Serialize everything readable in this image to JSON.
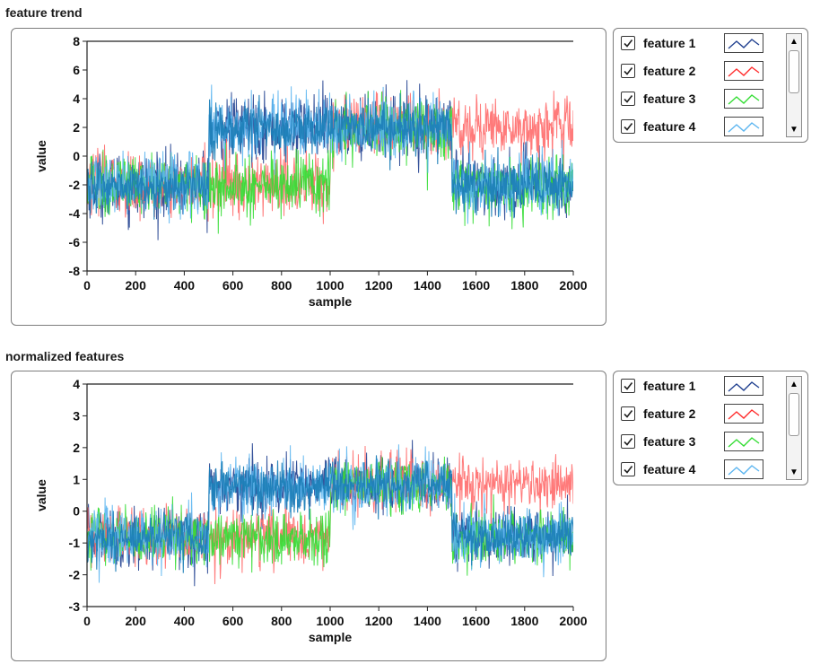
{
  "chart_data": [
    {
      "type": "line",
      "title": "feature trend",
      "xlabel": "sample",
      "ylabel": "value",
      "xlim": [
        0,
        2000
      ],
      "ylim": [
        -8,
        8
      ],
      "x_ticks": [
        "0",
        "200",
        "400",
        "600",
        "800",
        "1000",
        "1200",
        "1400",
        "1600",
        "1800",
        "2000"
      ],
      "y_ticks": [
        "8",
        "6",
        "4",
        "2",
        "0",
        "-2",
        "-4",
        "-6",
        "-8"
      ],
      "grid": false,
      "legend_position": "right",
      "series": [
        {
          "name": "feature 1",
          "color": "#1f3f8f",
          "segments": [
            {
              "x_start": 0,
              "x_end": 500,
              "mean": -2,
              "spread": 2
            },
            {
              "x_start": 500,
              "x_end": 1500,
              "mean": 2,
              "spread": 2
            },
            {
              "x_start": 1500,
              "x_end": 2000,
              "mean": -2,
              "spread": 2
            }
          ]
        },
        {
          "name": "feature 2",
          "color": "#ff6b6b",
          "segments": [
            {
              "x_start": 0,
              "x_end": 500,
              "mean": -2,
              "spread": 2
            },
            {
              "x_start": 500,
              "x_end": 1000,
              "mean": -2,
              "spread": 2
            },
            {
              "x_start": 1000,
              "x_end": 1500,
              "mean": 2,
              "spread": 2
            },
            {
              "x_start": 1500,
              "x_end": 2000,
              "mean": 2,
              "spread": 2
            }
          ]
        },
        {
          "name": "feature 3",
          "color": "#33dd33",
          "segments": [
            {
              "x_start": 0,
              "x_end": 500,
              "mean": -2,
              "spread": 2
            },
            {
              "x_start": 500,
              "x_end": 1000,
              "mean": -2,
              "spread": 2
            },
            {
              "x_start": 1000,
              "x_end": 1500,
              "mean": 2,
              "spread": 2
            },
            {
              "x_start": 1500,
              "x_end": 2000,
              "mean": -2,
              "spread": 2
            }
          ]
        },
        {
          "name": "feature 4",
          "color": "#5bb5f0",
          "segments": [
            {
              "x_start": 0,
              "x_end": 500,
              "mean": -2,
              "spread": 2
            },
            {
              "x_start": 500,
              "x_end": 1500,
              "mean": 2,
              "spread": 2
            },
            {
              "x_start": 1500,
              "x_end": 2000,
              "mean": -2,
              "spread": 2
            }
          ]
        },
        {
          "name": "",
          "color": "#1e7fb8",
          "segments": [
            {
              "x_start": 0,
              "x_end": 500,
              "mean": -2,
              "spread": 1.6
            },
            {
              "x_start": 500,
              "x_end": 1500,
              "mean": 2,
              "spread": 1.6
            },
            {
              "x_start": 1500,
              "x_end": 2000,
              "mean": -2,
              "spread": 1.6
            }
          ]
        }
      ]
    },
    {
      "type": "line",
      "title": "normalized features",
      "xlabel": "sample",
      "ylabel": "value",
      "xlim": [
        0,
        2000
      ],
      "ylim": [
        -3,
        4
      ],
      "x_ticks": [
        "0",
        "200",
        "400",
        "600",
        "800",
        "1000",
        "1200",
        "1400",
        "1600",
        "1800",
        "2000"
      ],
      "y_ticks": [
        "4",
        "3",
        "2",
        "1",
        "0",
        "-1",
        "-2",
        "-3"
      ],
      "grid": false,
      "legend_position": "right",
      "series": [
        {
          "name": "feature 1",
          "color": "#1f3f8f",
          "segments": [
            {
              "x_start": 0,
              "x_end": 500,
              "mean": -0.8,
              "spread": 0.8
            },
            {
              "x_start": 500,
              "x_end": 1500,
              "mean": 0.8,
              "spread": 0.8
            },
            {
              "x_start": 1500,
              "x_end": 2000,
              "mean": -0.8,
              "spread": 0.8
            }
          ]
        },
        {
          "name": "feature 2",
          "color": "#ff6b6b",
          "segments": [
            {
              "x_start": 0,
              "x_end": 500,
              "mean": -0.8,
              "spread": 0.8
            },
            {
              "x_start": 500,
              "x_end": 1000,
              "mean": -0.8,
              "spread": 0.8
            },
            {
              "x_start": 1000,
              "x_end": 1500,
              "mean": 0.8,
              "spread": 0.8
            },
            {
              "x_start": 1500,
              "x_end": 2000,
              "mean": 0.8,
              "spread": 0.8
            }
          ]
        },
        {
          "name": "feature 3",
          "color": "#33dd33",
          "segments": [
            {
              "x_start": 0,
              "x_end": 500,
              "mean": -0.8,
              "spread": 0.8
            },
            {
              "x_start": 500,
              "x_end": 1000,
              "mean": -0.8,
              "spread": 0.8
            },
            {
              "x_start": 1000,
              "x_end": 1500,
              "mean": 0.8,
              "spread": 0.8
            },
            {
              "x_start": 1500,
              "x_end": 2000,
              "mean": -0.8,
              "spread": 0.8
            }
          ]
        },
        {
          "name": "feature 4",
          "color": "#5bb5f0",
          "segments": [
            {
              "x_start": 0,
              "x_end": 500,
              "mean": -0.8,
              "spread": 0.8
            },
            {
              "x_start": 500,
              "x_end": 1500,
              "mean": 0.8,
              "spread": 0.8
            },
            {
              "x_start": 1500,
              "x_end": 2000,
              "mean": -0.8,
              "spread": 0.8
            }
          ]
        },
        {
          "name": "",
          "color": "#1e7fb8",
          "segments": [
            {
              "x_start": 0,
              "x_end": 500,
              "mean": -0.8,
              "spread": 0.65
            },
            {
              "x_start": 500,
              "x_end": 1500,
              "mean": 0.8,
              "spread": 0.65
            },
            {
              "x_start": 1500,
              "x_end": 2000,
              "mean": -0.8,
              "spread": 0.65
            }
          ]
        }
      ]
    }
  ],
  "legends": [
    {
      "items": [
        "feature 1",
        "feature 2",
        "feature 3",
        "feature 4"
      ],
      "checked": [
        true,
        true,
        true,
        true
      ],
      "colors": [
        "#1f3f8f",
        "#ff2b2b",
        "#33dd33",
        "#5bb5f0"
      ]
    },
    {
      "items": [
        "feature 1",
        "feature 2",
        "feature 3",
        "feature 4"
      ],
      "checked": [
        true,
        true,
        true,
        true
      ],
      "colors": [
        "#1f3f8f",
        "#ff2b2b",
        "#33dd33",
        "#5bb5f0"
      ]
    }
  ],
  "icons": {
    "scroll_up": "scroll-up-arrow-icon",
    "scroll_down": "scroll-down-arrow-icon",
    "checkbox": "checkmark-icon"
  }
}
